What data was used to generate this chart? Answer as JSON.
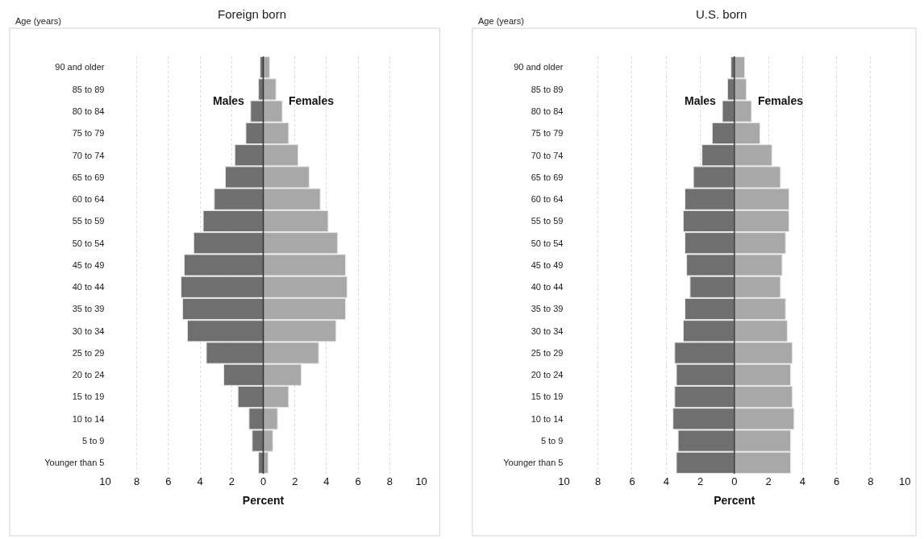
{
  "chart_data": [
    {
      "type": "bar",
      "orientation": "horizontal",
      "title": "Foreign born",
      "xlabel": "Percent",
      "ylabel": "Age (years)",
      "categories": [
        "90 and older",
        "85 to 89",
        "80 to 84",
        "75 to 79",
        "70 to 74",
        "65 to 69",
        "60 to 64",
        "55 to 59",
        "50 to 54",
        "45 to 49",
        "40 to 44",
        "35 to 39",
        "30 to 34",
        "25 to 29",
        "20 to 24",
        "15 to 19",
        "10 to 14",
        "5 to 9",
        "Younger than 5"
      ],
      "series": [
        {
          "name": "Males",
          "color": "#6f6f6f",
          "values": [
            -0.2,
            -0.3,
            -0.8,
            -1.1,
            -1.8,
            -2.4,
            -3.1,
            -3.8,
            -4.4,
            -5.0,
            -5.2,
            -5.1,
            -4.8,
            -3.6,
            -2.5,
            -1.6,
            -0.9,
            -0.7,
            -0.3
          ]
        },
        {
          "name": "Females",
          "color": "#a8a8a8",
          "values": [
            0.4,
            0.8,
            1.2,
            1.6,
            2.2,
            2.9,
            3.6,
            4.1,
            4.7,
            5.2,
            5.3,
            5.2,
            4.6,
            3.5,
            2.4,
            1.6,
            0.9,
            0.6,
            0.3
          ]
        }
      ],
      "xlim": [
        -10,
        10
      ],
      "stacked": true,
      "xticks": [
        {
          "value": -10,
          "label": "10"
        },
        {
          "value": -8,
          "label": "8"
        },
        {
          "value": -6,
          "label": "6"
        },
        {
          "value": -4,
          "label": "4"
        },
        {
          "value": -2,
          "label": "2"
        },
        0,
        2,
        4,
        6,
        8,
        10
      ],
      "grid": "x",
      "legend": false
    },
    {
      "type": "bar",
      "orientation": "horizontal",
      "title": "U.S. born",
      "xlabel": "Percent",
      "ylabel": "Age (years)",
      "categories": [
        "90 and older",
        "85 to 89",
        "80 to 84",
        "75 to 79",
        "70 to 74",
        "65 to 69",
        "60 to 64",
        "55 to 59",
        "50 to 54",
        "45 to 49",
        "40 to 44",
        "35 to 39",
        "30 to 34",
        "25 to 29",
        "20 to 24",
        "15 to 19",
        "10 to 14",
        "5 to 9",
        "Younger than 5"
      ],
      "series": [
        {
          "name": "Males",
          "color": "#6f6f6f",
          "values": [
            -0.2,
            -0.4,
            -0.7,
            -1.3,
            -1.9,
            -2.4,
            -2.9,
            -3.0,
            -2.9,
            -2.8,
            -2.6,
            -2.9,
            -3.0,
            -3.5,
            -3.4,
            -3.5,
            -3.6,
            -3.3,
            -3.4
          ]
        },
        {
          "name": "Females",
          "color": "#a8a8a8",
          "values": [
            0.6,
            0.7,
            1.0,
            1.5,
            2.2,
            2.7,
            3.2,
            3.2,
            3.0,
            2.8,
            2.7,
            3.0,
            3.1,
            3.4,
            3.3,
            3.4,
            3.5,
            3.3,
            3.3
          ]
        }
      ],
      "xlim": [
        -10,
        10
      ],
      "stacked": true,
      "xticks": [
        {
          "value": -10,
          "label": "10"
        },
        {
          "value": -8,
          "label": "8"
        },
        {
          "value": -6,
          "label": "6"
        },
        {
          "value": -4,
          "label": "4"
        },
        {
          "value": -2,
          "label": "2"
        },
        0,
        2,
        4,
        6,
        8,
        10
      ],
      "grid": "x",
      "legend": false
    }
  ]
}
